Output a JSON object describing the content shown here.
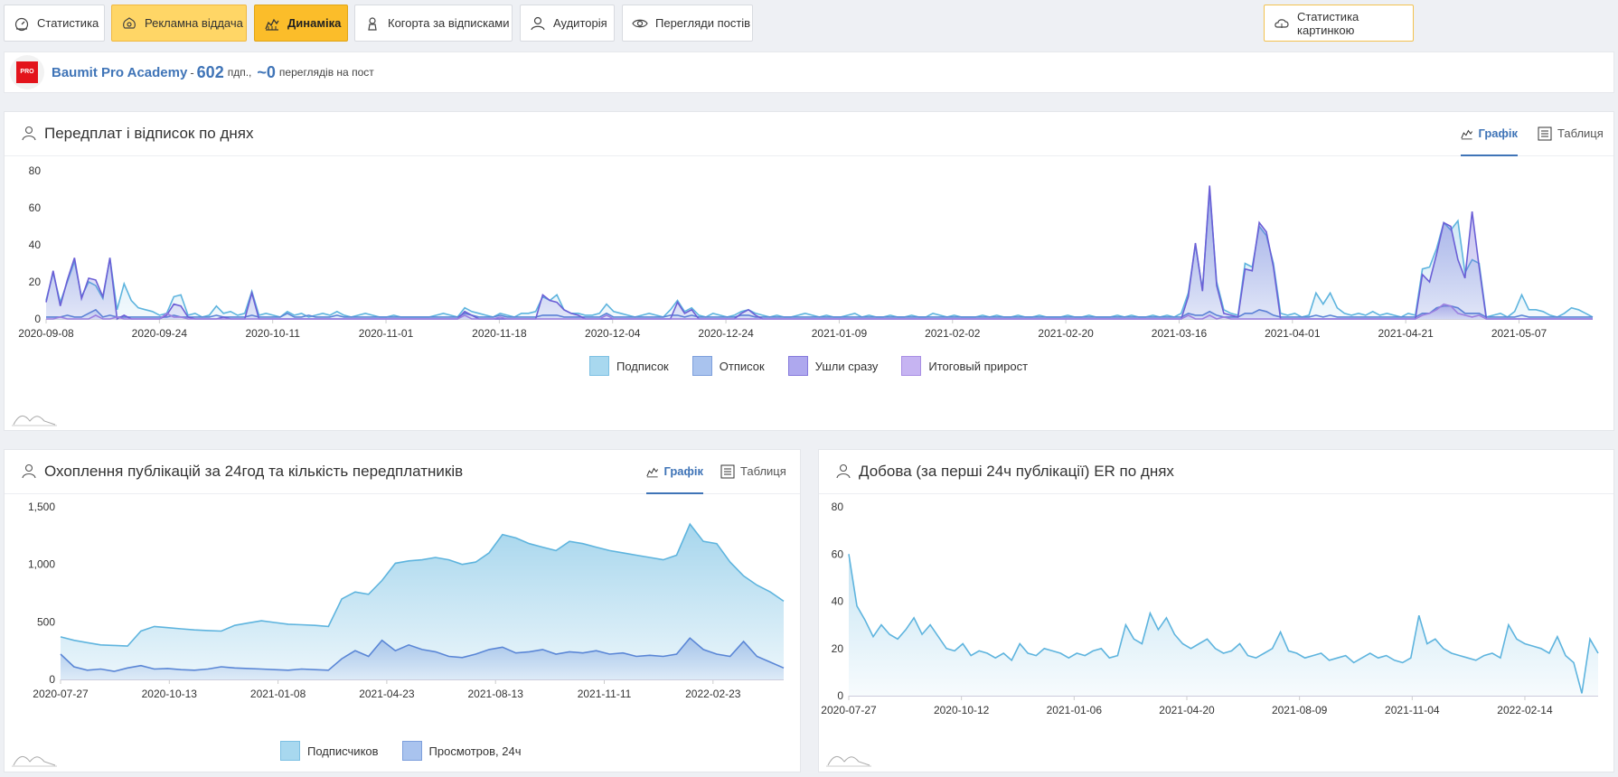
{
  "nav": {
    "tabs": [
      {
        "label": "Статистика",
        "icon": "gauge-icon"
      },
      {
        "label": "Рекламна віддача",
        "icon": "ad-return-icon"
      },
      {
        "label": "Динаміка",
        "icon": "dynamics-chart-icon"
      },
      {
        "label": "Когорта за відписками",
        "icon": "cohort-icon"
      },
      {
        "label": "Аудиторія",
        "icon": "audience-icon"
      },
      {
        "label": "Перегляди постів",
        "icon": "eye-icon"
      }
    ],
    "image_stats_label": "Статистика картинкою"
  },
  "profile": {
    "logo_text": "PRO",
    "name": "Baumit Pro Academy",
    "separator": "-",
    "subscribers": "602",
    "subscribers_unit": "пдп.,",
    "views": "~0",
    "views_unit": "переглядів на пост"
  },
  "panel1": {
    "title": "Передплат і відписок по днях",
    "tab_chart": "Графік",
    "tab_table": "Таблиця",
    "legend": [
      "Подписок",
      "Отписок",
      "Ушли сразу",
      "Итоговый прирост"
    ]
  },
  "panel2": {
    "title": "Охоплення публікацій за 24год та кількість передплатників",
    "tab_chart": "Графік",
    "tab_table": "Таблиця",
    "legend": [
      "Подписчиков",
      "Просмотров, 24ч"
    ]
  },
  "panel3": {
    "title": "Добова (за перші 24ч публікації) ER по днях"
  },
  "colors": {
    "accent": "#3f74b7",
    "subs": "#5eb4de",
    "unsubs": "#5a86d6",
    "gone": "#6b5fd6",
    "net": "#9b7fe0"
  },
  "chart_data": [
    {
      "type": "area",
      "ylim": [
        0,
        80
      ],
      "yticks": [
        "0",
        "20",
        "40",
        "60",
        "80"
      ],
      "xticks": [
        "2020-09-08",
        "2020-09-24",
        "2020-10-11",
        "2020-11-01",
        "2020-11-18",
        "2020-12-04",
        "2020-12-24",
        "2021-01-09",
        "2021-02-02",
        "2021-02-20",
        "2021-03-16",
        "2021-04-01",
        "2021-04-21",
        "2021-05-07"
      ],
      "series": [
        {
          "name": "Подписок",
          "values": [
            10,
            25,
            9,
            20,
            31,
            12,
            20,
            18,
            11,
            33,
            5,
            19,
            10,
            6,
            5,
            4,
            2,
            3,
            12,
            13,
            2,
            3,
            1,
            2,
            7,
            3,
            4,
            2,
            3,
            15,
            2,
            3,
            2,
            1,
            4,
            2,
            3,
            1,
            2,
            3,
            2,
            4,
            2,
            1,
            2,
            3,
            2,
            1,
            1,
            2,
            1,
            1,
            1,
            1,
            1,
            2,
            3,
            2,
            1,
            6,
            4,
            3,
            2,
            1,
            3,
            2,
            1,
            3,
            3,
            4,
            12,
            10,
            13,
            5,
            3,
            3,
            2,
            2,
            3,
            8,
            4,
            3,
            2,
            1,
            2,
            3,
            2,
            1,
            5,
            10,
            4,
            6,
            2,
            1,
            3,
            2,
            1,
            2,
            4,
            5,
            3,
            2,
            1,
            2,
            1,
            1,
            2,
            3,
            2,
            1,
            2,
            1,
            1,
            2,
            3,
            1,
            2,
            1,
            1,
            2,
            1,
            1,
            2,
            1,
            1,
            3,
            2,
            1,
            2,
            1,
            1,
            1,
            2,
            1,
            2,
            1,
            1,
            2,
            1,
            1,
            2,
            1,
            1,
            1,
            2,
            1,
            1,
            2,
            1,
            1,
            1,
            2,
            1,
            2,
            1,
            1,
            2,
            1,
            2,
            1,
            3,
            14,
            40,
            16,
            70,
            20,
            5,
            3,
            2,
            30,
            28,
            50,
            45,
            30,
            3,
            2,
            3,
            1,
            2,
            14,
            8,
            14,
            6,
            3,
            2,
            3,
            2,
            4,
            2,
            3,
            2,
            1,
            3,
            2,
            27,
            28,
            38,
            52,
            48,
            53,
            25,
            32,
            30,
            1,
            2,
            3,
            1,
            4,
            13,
            5,
            5,
            4,
            2,
            1,
            3,
            6,
            5,
            3,
            1
          ]
        },
        {
          "name": "Отписок",
          "values": [
            1,
            1,
            1,
            2,
            1,
            1,
            3,
            5,
            1,
            2,
            1,
            1,
            1,
            1,
            1,
            1,
            1,
            1,
            2,
            1,
            1,
            1,
            1,
            1,
            2,
            1,
            1,
            1,
            1,
            2,
            1,
            1,
            1,
            1,
            3,
            1,
            1,
            2,
            1,
            1,
            1,
            2,
            1,
            1,
            1,
            1,
            1,
            1,
            1,
            1,
            1,
            1,
            1,
            1,
            1,
            1,
            1,
            1,
            1,
            3,
            2,
            1,
            1,
            1,
            2,
            1,
            1,
            1,
            1,
            1,
            2,
            2,
            2,
            1,
            1,
            1,
            1,
            1,
            1,
            3,
            1,
            1,
            1,
            1,
            1,
            1,
            1,
            1,
            2,
            2,
            1,
            2,
            1,
            1,
            1,
            1,
            1,
            1,
            2,
            2,
            1,
            1,
            1,
            1,
            1,
            1,
            1,
            1,
            1,
            1,
            1,
            1,
            1,
            1,
            1,
            1,
            1,
            1,
            1,
            1,
            1,
            1,
            1,
            1,
            1,
            1,
            1,
            1,
            1,
            1,
            1,
            1,
            1,
            1,
            1,
            1,
            1,
            1,
            1,
            1,
            1,
            1,
            1,
            1,
            1,
            1,
            1,
            1,
            1,
            1,
            1,
            1,
            1,
            1,
            1,
            1,
            1,
            1,
            1,
            1,
            1,
            3,
            2,
            2,
            4,
            2,
            1,
            1,
            1,
            3,
            3,
            5,
            4,
            2,
            1,
            1,
            1,
            1,
            1,
            2,
            1,
            2,
            1,
            1,
            1,
            1,
            1,
            1,
            1,
            1,
            1,
            1,
            1,
            1,
            3,
            3,
            6,
            7,
            7,
            6,
            3,
            3,
            3,
            1,
            1,
            1,
            1,
            1,
            2,
            1,
            1,
            1,
            1,
            1,
            1,
            1,
            1,
            1,
            1
          ]
        },
        {
          "name": "Ушли сразу",
          "values": [
            9,
            26,
            7,
            21,
            33,
            11,
            22,
            21,
            12,
            33,
            0,
            2,
            0,
            0,
            0,
            0,
            0,
            2,
            8,
            7,
            1,
            0,
            0,
            0,
            0,
            1,
            0,
            0,
            0,
            14,
            0,
            0,
            0,
            0,
            0,
            0,
            0,
            0,
            0,
            0,
            0,
            0,
            0,
            0,
            0,
            0,
            0,
            0,
            0,
            0,
            0,
            0,
            0,
            0,
            0,
            0,
            0,
            0,
            0,
            4,
            2,
            0,
            0,
            0,
            0,
            0,
            0,
            0,
            0,
            0,
            13,
            10,
            9,
            5,
            3,
            2,
            0,
            0,
            0,
            0,
            0,
            0,
            0,
            0,
            0,
            0,
            0,
            0,
            0,
            9,
            3,
            5,
            0,
            0,
            0,
            0,
            0,
            0,
            3,
            5,
            2,
            0,
            0,
            0,
            0,
            0,
            0,
            0,
            0,
            0,
            0,
            0,
            0,
            0,
            0,
            0,
            0,
            0,
            0,
            0,
            0,
            0,
            0,
            0,
            0,
            0,
            0,
            0,
            0,
            0,
            0,
            0,
            0,
            0,
            0,
            0,
            0,
            0,
            0,
            0,
            0,
            0,
            0,
            0,
            0,
            0,
            0,
            0,
            0,
            0,
            0,
            0,
            0,
            0,
            0,
            0,
            0,
            0,
            0,
            0,
            0,
            12,
            41,
            15,
            72,
            18,
            3,
            2,
            1,
            27,
            26,
            52,
            47,
            28,
            0,
            0,
            0,
            0,
            0,
            0,
            0,
            0,
            0,
            0,
            0,
            0,
            0,
            0,
            0,
            0,
            0,
            0,
            0,
            0,
            24,
            20,
            35,
            52,
            50,
            32,
            22,
            58,
            28,
            0,
            0,
            0,
            0,
            0,
            0,
            0,
            0,
            0,
            0,
            0,
            0,
            0,
            0,
            0,
            0
          ]
        },
        {
          "name": "Итоговый прирост",
          "values": [
            0,
            0,
            1,
            0,
            0,
            0,
            0,
            2,
            0,
            0,
            1,
            0,
            0,
            0,
            0,
            0,
            0,
            3,
            1,
            1,
            0,
            0,
            0,
            0,
            0,
            0,
            0,
            0,
            0,
            0,
            0,
            0,
            0,
            0,
            0,
            0,
            0,
            0,
            0,
            0,
            0,
            0,
            0,
            0,
            0,
            0,
            0,
            0,
            0,
            0,
            0,
            0,
            0,
            0,
            0,
            0,
            0,
            0,
            0,
            2,
            0,
            0,
            0,
            0,
            1,
            0,
            0,
            0,
            0,
            0,
            0,
            0,
            0,
            0,
            0,
            0,
            0,
            0,
            0,
            2,
            0,
            0,
            0,
            0,
            0,
            0,
            0,
            0,
            0,
            0,
            0,
            0,
            0,
            0,
            0,
            0,
            0,
            0,
            0,
            0,
            0,
            0,
            0,
            0,
            0,
            0,
            0,
            0,
            0,
            0,
            0,
            0,
            0,
            0,
            0,
            0,
            0,
            0,
            0,
            0,
            0,
            0,
            0,
            0,
            0,
            0,
            0,
            0,
            0,
            0,
            0,
            0,
            0,
            0,
            0,
            0,
            0,
            0,
            0,
            0,
            0,
            0,
            0,
            0,
            0,
            0,
            0,
            0,
            0,
            0,
            0,
            0,
            0,
            0,
            0,
            0,
            0,
            0,
            0,
            0,
            0,
            2,
            0,
            0,
            2,
            0,
            1,
            0,
            0,
            0,
            0,
            0,
            0,
            0,
            0,
            0,
            0,
            0,
            0,
            0,
            0,
            0,
            0,
            0,
            0,
            0,
            0,
            0,
            0,
            0,
            0,
            0,
            0,
            0,
            2,
            3,
            5,
            8,
            7,
            3,
            2,
            1,
            2,
            0,
            0,
            0,
            0,
            0,
            0,
            0,
            0,
            0,
            0,
            0,
            0,
            0,
            0,
            0,
            0
          ]
        }
      ]
    },
    {
      "type": "area",
      "ylim": [
        0,
        1500
      ],
      "yticks": [
        "0",
        "500",
        "1,000",
        "1,500"
      ],
      "xticks": [
        "2020-07-27",
        "2020-10-13",
        "2021-01-08",
        "2021-04-23",
        "2021-08-13",
        "2021-11-11",
        "2022-02-23"
      ],
      "series": [
        {
          "name": "Подписчиков",
          "values": [
            370,
            340,
            320,
            300,
            295,
            290,
            420,
            460,
            450,
            440,
            430,
            425,
            420,
            470,
            490,
            510,
            495,
            480,
            475,
            470,
            460,
            700,
            760,
            740,
            860,
            1010,
            1030,
            1040,
            1060,
            1040,
            1000,
            1020,
            1100,
            1260,
            1230,
            1180,
            1150,
            1120,
            1200,
            1180,
            1150,
            1120,
            1100,
            1080,
            1060,
            1040,
            1080,
            1350,
            1200,
            1180,
            1020,
            900,
            820,
            760,
            680
          ]
        },
        {
          "name": "Просмотров, 24ч",
          "values": [
            220,
            110,
            80,
            90,
            70,
            100,
            120,
            90,
            95,
            85,
            80,
            90,
            110,
            100,
            95,
            90,
            85,
            80,
            90,
            85,
            80,
            180,
            250,
            200,
            340,
            250,
            300,
            260,
            240,
            200,
            190,
            220,
            260,
            280,
            230,
            240,
            260,
            220,
            240,
            230,
            250,
            220,
            230,
            200,
            210,
            200,
            220,
            360,
            260,
            220,
            200,
            330,
            200,
            150,
            100
          ]
        }
      ]
    },
    {
      "type": "area",
      "ylim": [
        0,
        80
      ],
      "yticks": [
        "0",
        "20",
        "40",
        "60",
        "80"
      ],
      "xticks": [
        "2020-07-27",
        "2020-10-12",
        "2021-01-06",
        "2021-04-20",
        "2021-08-09",
        "2021-11-04",
        "2022-02-14"
      ],
      "series": [
        {
          "name": "",
          "values": [
            60,
            38,
            32,
            25,
            30,
            26,
            24,
            28,
            33,
            26,
            30,
            25,
            20,
            19,
            22,
            17,
            19,
            18,
            16,
            18,
            15,
            22,
            18,
            17,
            20,
            19,
            18,
            16,
            18,
            17,
            19,
            20,
            16,
            17,
            30,
            24,
            22,
            35,
            28,
            33,
            26,
            22,
            20,
            22,
            24,
            20,
            18,
            19,
            22,
            17,
            16,
            18,
            20,
            27,
            19,
            18,
            16,
            17,
            18,
            15,
            16,
            17,
            14,
            16,
            18,
            16,
            17,
            15,
            14,
            16,
            34,
            22,
            24,
            20,
            18,
            17,
            16,
            15,
            17,
            18,
            16,
            30,
            24,
            22,
            21,
            20,
            18,
            25,
            17,
            14,
            1,
            24,
            18
          ]
        }
      ]
    }
  ]
}
